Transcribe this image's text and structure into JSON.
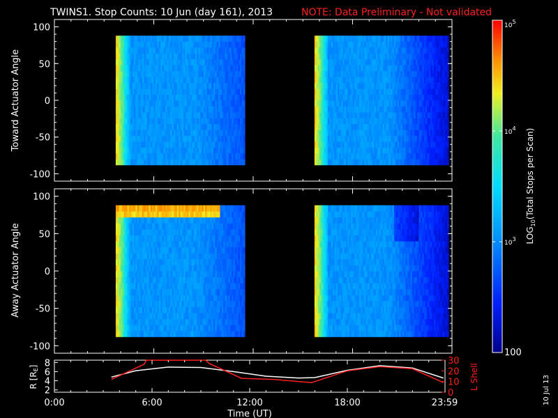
{
  "title": {
    "main": "TWINS1. Stop Counts: 10 Jun (day 161), 2013",
    "note": "NOTE: Data Preliminary - Not validated",
    "note_color": "#ff2020"
  },
  "side_date": "10 Jul 13",
  "chart_data": [
    {
      "type": "heatmap",
      "panel": "toward",
      "ylabel": "Toward Actuator Angle",
      "ylim": [
        -110,
        110
      ],
      "yticks": [
        100,
        50,
        0,
        -50,
        -100
      ],
      "x_units": "hours UT",
      "xlim": [
        0,
        24
      ],
      "data_blocks": [
        {
          "start_hour": 3.7,
          "end_hour": 11.5,
          "angle_range": [
            -88,
            88
          ]
        },
        {
          "start_hour": 15.7,
          "end_hour": 23.8,
          "angle_range": [
            -88,
            88
          ]
        }
      ],
      "colorscale": "log",
      "typical_log10": 3.0
    },
    {
      "type": "heatmap",
      "panel": "away",
      "ylabel": "Away Actuator Angle",
      "ylim": [
        -110,
        110
      ],
      "yticks": [
        100,
        50,
        0,
        -50,
        -100
      ],
      "x_units": "hours UT",
      "xlim": [
        0,
        24
      ],
      "data_blocks": [
        {
          "start_hour": 3.7,
          "end_hour": 11.5,
          "angle_range": [
            -88,
            88
          ]
        },
        {
          "start_hour": 15.7,
          "end_hour": 23.8,
          "angle_range": [
            -88,
            88
          ]
        }
      ],
      "colorscale": "log",
      "high_count_band": {
        "start_hour": 3.7,
        "end_hour": 10.0,
        "angle_range": [
          70,
          90
        ],
        "log10": 4.6
      }
    },
    {
      "type": "line",
      "panel": "ephemeris",
      "xlabel": "Time (UT)",
      "xticks": [
        "0:00",
        "6:00",
        "12:00",
        "18:00",
        "23:59"
      ],
      "xtick_hours": [
        0,
        6,
        12,
        18,
        23.98
      ],
      "xlim": [
        0,
        24
      ],
      "left_axis": {
        "label": "R [RE]",
        "ticks": [
          2,
          4,
          6,
          8
        ],
        "ylim": [
          1.5,
          8.5
        ],
        "color": "#ffffff"
      },
      "right_axis": {
        "label": "L Shell",
        "ticks": [
          0,
          10,
          20,
          30
        ],
        "ylim": [
          0,
          30
        ],
        "color": "#ff2020"
      },
      "series": [
        {
          "axis": "left",
          "color": "#ffffff",
          "x": [
            3.5,
            5,
            7,
            9,
            11,
            13,
            15,
            16,
            18,
            20,
            22,
            23.9
          ],
          "y": [
            4.8,
            6.2,
            7.0,
            6.9,
            6.0,
            5.0,
            4.6,
            4.7,
            6.3,
            7.3,
            6.8,
            4.6
          ]
        },
        {
          "axis": "right",
          "color": "#ff2020",
          "x": [
            3.5,
            5.5,
            5.65,
            9.3,
            9.5,
            11.5,
            13.5,
            15.8,
            18,
            20,
            22,
            23.9
          ],
          "y": [
            12,
            26,
            30,
            30,
            27,
            13,
            12,
            9,
            20,
            24,
            22,
            9
          ]
        }
      ]
    }
  ],
  "colorbar": {
    "label": "LOG10(Total Stops per Scan)",
    "ticks": [
      {
        "text": "10",
        "sup": "5",
        "log10": 5
      },
      {
        "text": "10",
        "sup": "4",
        "log10": 4
      },
      {
        "text": "10",
        "sup": "3",
        "log10": 3
      },
      {
        "text": "100",
        "sup": "",
        "log10": 2
      }
    ],
    "range": [
      2,
      5
    ]
  }
}
